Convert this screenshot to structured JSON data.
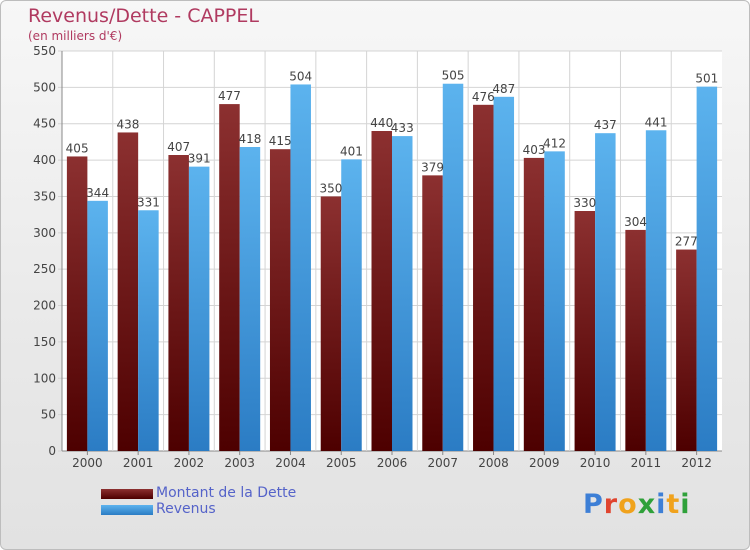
{
  "header": {
    "title": "Revenus/Dette - CAPPEL",
    "subtitle": "(en milliers d'€)"
  },
  "colors": {
    "dette": "#7a1c1c",
    "revenus": "#4aa3e6"
  },
  "legend": {
    "items": [
      {
        "label": "Montant de la Dette"
      },
      {
        "label": "Revenus"
      }
    ]
  },
  "logo": {
    "text": "Proxiti",
    "letter_colors": [
      "#3d7fd6",
      "#e0442e",
      "#f0a21c",
      "#2fa13a",
      "#3d7fd6",
      "#f0a21c",
      "#2fa13a"
    ]
  },
  "chart_data": {
    "type": "bar",
    "title": "Revenus/Dette - CAPPEL",
    "subtitle": "(en milliers d'€)",
    "categories": [
      "2000",
      "2001",
      "2002",
      "2003",
      "2004",
      "2005",
      "2006",
      "2007",
      "2008",
      "2009",
      "2010",
      "2011",
      "2012"
    ],
    "series": [
      {
        "name": "Montant de la Dette",
        "values": [
          405,
          438,
          407,
          477,
          415,
          350,
          440,
          379,
          476,
          403,
          330,
          304,
          277
        ]
      },
      {
        "name": "Revenus",
        "values": [
          344,
          331,
          391,
          418,
          504,
          401,
          433,
          505,
          487,
          412,
          437,
          441,
          501
        ]
      }
    ],
    "ylim": [
      0,
      550
    ],
    "yticks": [
      0,
      50,
      100,
      150,
      200,
      250,
      300,
      350,
      400,
      450,
      500,
      550
    ],
    "grid": true,
    "legend_position": "bottom-left"
  }
}
